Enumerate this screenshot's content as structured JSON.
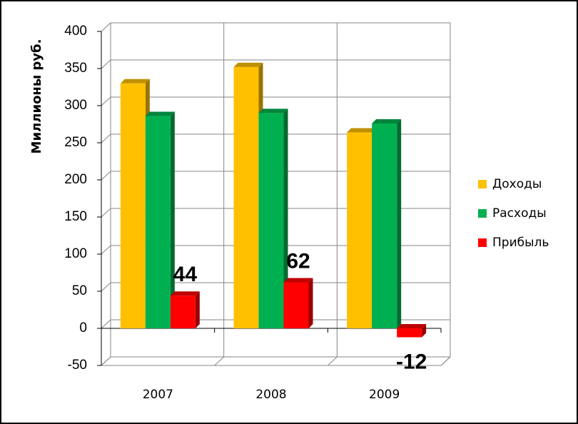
{
  "chart_data": {
    "type": "bar3d",
    "y_label": "Миллионы руб.",
    "categories": [
      "2007",
      "2008",
      "2009"
    ],
    "series": [
      {
        "name": "Доходы",
        "color": "#FFC000",
        "values": [
          330,
          352,
          264
        ]
      },
      {
        "name": "Расходы",
        "color": "#00B050",
        "values": [
          286,
          290,
          276
        ]
      },
      {
        "name": "Прибыль",
        "color": "#FF0000",
        "values": [
          44,
          62,
          -12
        ],
        "data_labels": true
      }
    ],
    "ylim": [
      -50,
      400
    ],
    "yticks": [
      -50,
      0,
      50,
      100,
      150,
      200,
      250,
      300,
      350,
      400
    ],
    "grid": true,
    "legend": "right"
  }
}
